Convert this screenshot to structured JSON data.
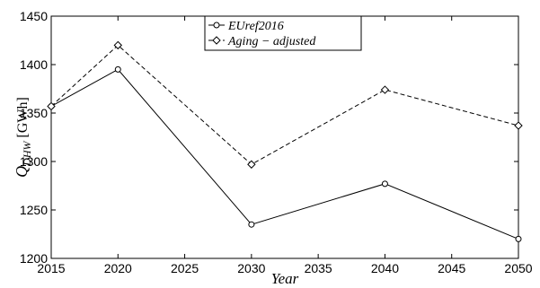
{
  "chart_data": {
    "type": "line",
    "title": "",
    "xlabel": "Year",
    "ylabel": {
      "symbol": "Q",
      "subscript": "DHW",
      "unit": "[GWh]"
    },
    "x": [
      2015,
      2020,
      2030,
      2040,
      2050
    ],
    "xlim": [
      2015,
      2050
    ],
    "ylim": [
      1200,
      1450
    ],
    "xticks": [
      "2015",
      "2020",
      "2025",
      "2030",
      "2035",
      "2040",
      "2045",
      "2050"
    ],
    "yticks": [
      "1200",
      "1250",
      "1300",
      "1350",
      "1400",
      "1450"
    ],
    "grid": false,
    "legend_position": "top-center",
    "series": [
      {
        "name": "EUref2016",
        "values": [
          1357,
          1395,
          1235,
          1277,
          1220
        ],
        "line_style": "solid",
        "marker": "circle",
        "color": "#000000"
      },
      {
        "name": "Aging − adjusted",
        "values": [
          1357,
          1420,
          1297,
          1374,
          1337
        ],
        "line_style": "dashed",
        "marker": "diamond",
        "color": "#000000"
      }
    ]
  }
}
